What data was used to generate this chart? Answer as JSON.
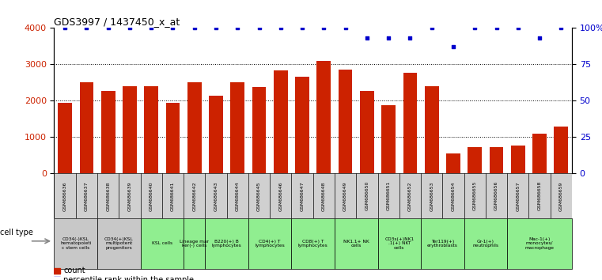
{
  "title": "GDS3997 / 1437450_x_at",
  "gsm_labels": [
    "GSM686636",
    "GSM686637",
    "GSM686638",
    "GSM686639",
    "GSM686640",
    "GSM686641",
    "GSM686642",
    "GSM686643",
    "GSM686644",
    "GSM686645",
    "GSM686646",
    "GSM686647",
    "GSM686648",
    "GSM686649",
    "GSM686650",
    "GSM686651",
    "GSM686652",
    "GSM686653",
    "GSM686654",
    "GSM686655",
    "GSM686656",
    "GSM686657",
    "GSM686658",
    "GSM686659"
  ],
  "counts": [
    1950,
    2500,
    2270,
    2390,
    2390,
    1950,
    2500,
    2130,
    2520,
    2380,
    2830,
    2670,
    3100,
    2850,
    2280,
    1870,
    2770,
    2390,
    550,
    730,
    720,
    770,
    1100,
    1300
  ],
  "percentile_ranks": [
    100,
    100,
    100,
    100,
    100,
    100,
    100,
    100,
    100,
    100,
    100,
    100,
    100,
    100,
    93,
    93,
    93,
    100,
    87,
    100,
    100,
    100,
    93,
    100
  ],
  "bar_color": "#cc2200",
  "dot_color": "#0000cc",
  "background_color": "#ffffff",
  "ylim_left": [
    0,
    4000
  ],
  "ylim_right": [
    0,
    100
  ],
  "yticks_left": [
    0,
    1000,
    2000,
    3000,
    4000
  ],
  "yticks_right": [
    0,
    25,
    50,
    75,
    100
  ],
  "cell_groups": [
    {
      "label": "CD34(-)KSL\nhematopoieti\nc stem cells",
      "start": 0,
      "end": 2,
      "color": "#c8c8c8"
    },
    {
      "label": "CD34(+)KSL\nmultipotent\nprogenitors",
      "start": 2,
      "end": 4,
      "color": "#c8c8c8"
    },
    {
      "label": "KSL cells",
      "start": 4,
      "end": 6,
      "color": "#90ee90"
    },
    {
      "label": "Lineage mar\nker(-) cells",
      "start": 6,
      "end": 7,
      "color": "#90ee90"
    },
    {
      "label": "B220(+) B\nlymphocytes",
      "start": 7,
      "end": 9,
      "color": "#90ee90"
    },
    {
      "label": "CD4(+) T\nlymphocytes",
      "start": 9,
      "end": 11,
      "color": "#90ee90"
    },
    {
      "label": "CD8(+) T\nlymphocytes",
      "start": 11,
      "end": 13,
      "color": "#90ee90"
    },
    {
      "label": "NK1.1+ NK\ncells",
      "start": 13,
      "end": 15,
      "color": "#90ee90"
    },
    {
      "label": "CD3s(+)NK1\n.1(+) NKT\ncells",
      "start": 15,
      "end": 17,
      "color": "#90ee90"
    },
    {
      "label": "Ter119(+)\nerythroblasts",
      "start": 17,
      "end": 19,
      "color": "#90ee90"
    },
    {
      "label": "Gr-1(+)\nneutrophils",
      "start": 19,
      "end": 21,
      "color": "#90ee90"
    },
    {
      "label": "Mac-1(+)\nmonocytes/\nmacrophage",
      "start": 21,
      "end": 24,
      "color": "#90ee90"
    }
  ],
  "gsm_label_bg": "#d0d0d0",
  "legend_count_color": "#cc2200",
  "legend_dot_color": "#0000cc"
}
